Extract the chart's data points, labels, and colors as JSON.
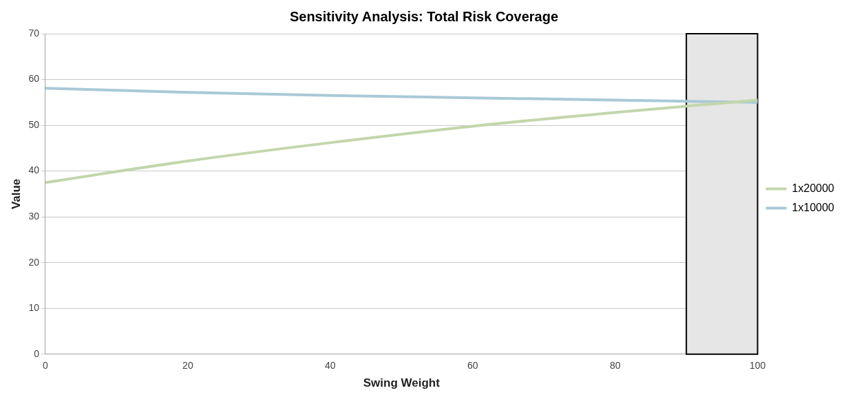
{
  "chart_data": {
    "type": "line",
    "title": "Sensitivity Analysis: Total Risk Coverage",
    "xlabel": "Swing Weight",
    "ylabel": "Value",
    "x": [
      0,
      20,
      40,
      60,
      80,
      100
    ],
    "series": [
      {
        "name": "1x20000",
        "color": "#c3d6ac",
        "values": [
          37.5,
          42.2,
          46.2,
          49.8,
          52.8,
          55.5
        ]
      },
      {
        "name": "1x10000",
        "color": "#a9c9d6",
        "values": [
          58.1,
          57.2,
          56.5,
          56,
          55.5,
          55
        ]
      }
    ],
    "xlim": [
      0,
      100
    ],
    "xticks": [
      0,
      20,
      40,
      60,
      80,
      100
    ],
    "ylim": [
      0,
      70
    ],
    "yticks": [
      0,
      10,
      20,
      30,
      40,
      50,
      60,
      70
    ],
    "bands": [
      {
        "axis": "x",
        "from": 90,
        "to": 100,
        "color": "#e6e6e6"
      }
    ],
    "grid": "y",
    "legend": "right",
    "marker": "none",
    "line_style": "solid"
  }
}
